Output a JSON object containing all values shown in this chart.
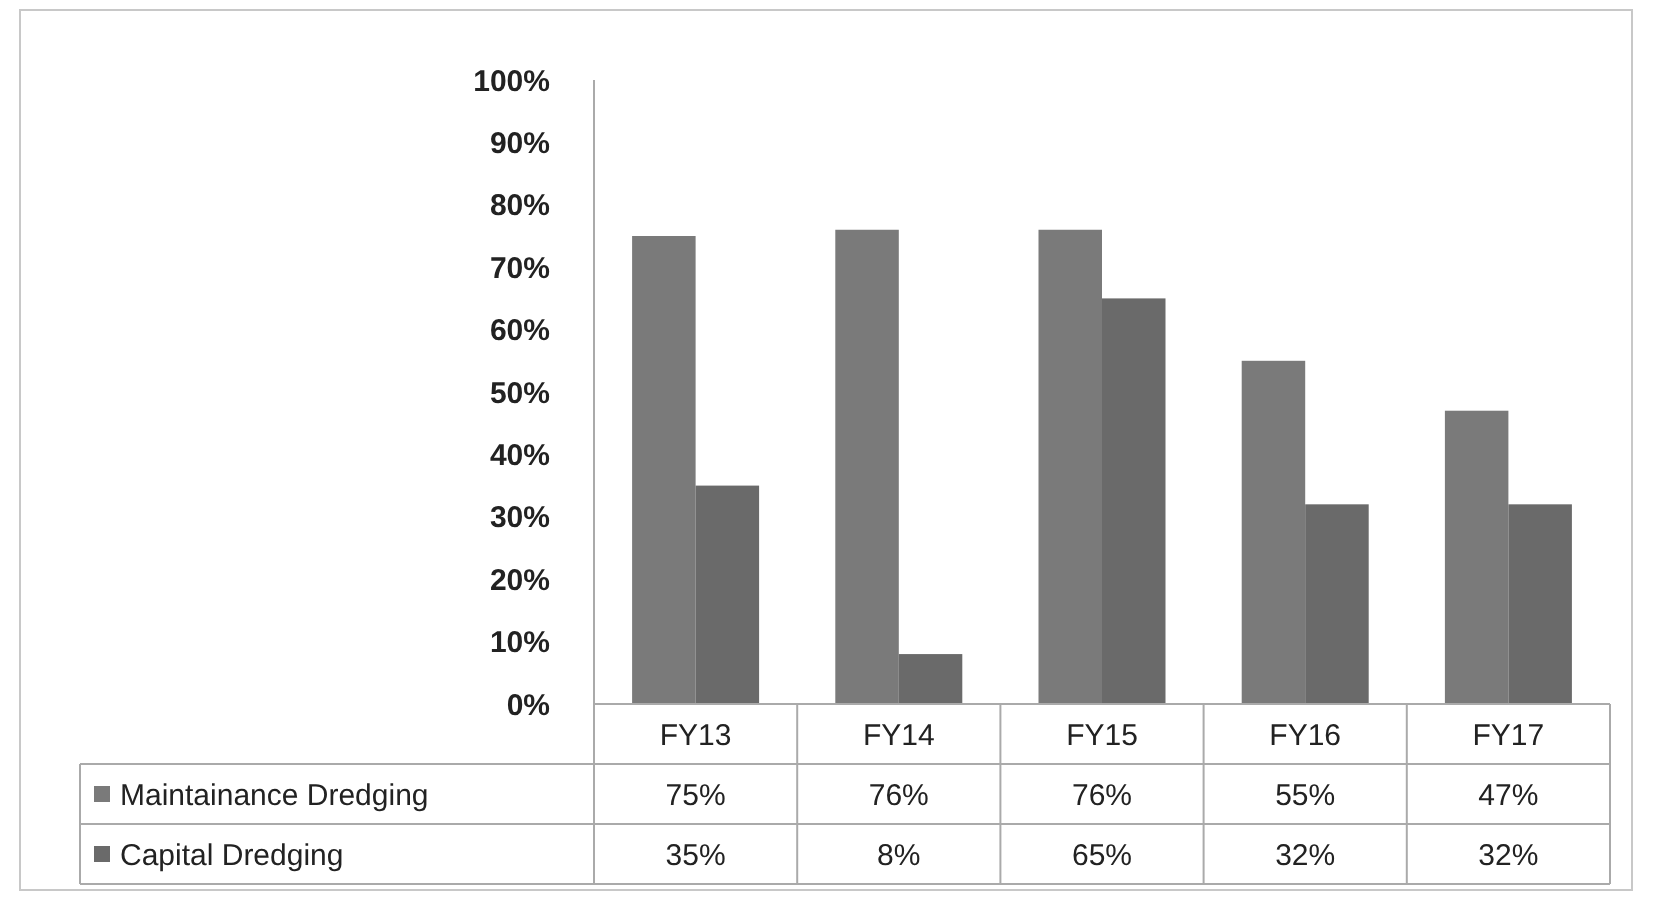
{
  "chart_data": {
    "type": "bar",
    "categories": [
      "FY13",
      "FY14",
      "FY15",
      "FY16",
      "FY17"
    ],
    "series": [
      {
        "name": "Maintainance Dredging",
        "color": "#7a7a7a",
        "values": [
          75,
          76,
          76,
          55,
          47
        ],
        "value_labels": [
          "75%",
          "76%",
          "76%",
          "55%",
          "47%"
        ]
      },
      {
        "name": "Capital Dredging",
        "color": "#6a6a6a",
        "values": [
          35,
          8,
          65,
          32,
          32
        ],
        "value_labels": [
          "35%",
          "8%",
          "65%",
          "32%",
          "32%"
        ]
      }
    ],
    "ylim": [
      0,
      100
    ],
    "yticks": [
      {
        "value": 0,
        "label": "0%"
      },
      {
        "value": 10,
        "label": "10%"
      },
      {
        "value": 20,
        "label": "20%"
      },
      {
        "value": 30,
        "label": "30%"
      },
      {
        "value": 40,
        "label": "40%"
      },
      {
        "value": 50,
        "label": "50%"
      },
      {
        "value": 60,
        "label": "60%"
      },
      {
        "value": 70,
        "label": "70%"
      },
      {
        "value": 80,
        "label": "80%"
      },
      {
        "value": 90,
        "label": "90%"
      },
      {
        "value": 100,
        "label": "100%"
      }
    ],
    "grid": false,
    "legend": "bottom",
    "data_labels": true
  }
}
